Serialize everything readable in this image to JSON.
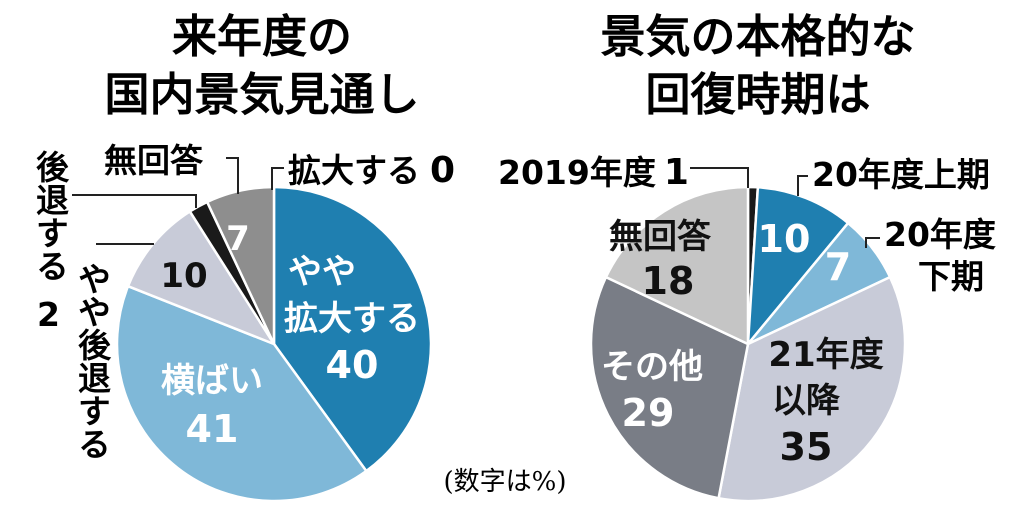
{
  "note": "(数字は%)",
  "chart_data": [
    {
      "type": "pie",
      "title_lines": [
        "来年度の",
        "国内景気見通し"
      ],
      "slices": [
        {
          "label": "拡大する",
          "value": 0,
          "color": "#1f7fb0"
        },
        {
          "label": "やや拡大する",
          "value": 40,
          "color": "#1f7fb0"
        },
        {
          "label": "横ばい",
          "value": 41,
          "color": "#7fb8d8"
        },
        {
          "label": "やや後退する",
          "value": 10,
          "color": "#c8cbd8"
        },
        {
          "label": "後退する",
          "value": 2,
          "color": "#1a1a1a"
        },
        {
          "label": "無回答",
          "value": 7,
          "color": "#8e8e8e"
        }
      ],
      "labels": {
        "kakudai": "拡大する",
        "kakudai_val": "0",
        "yaya_kakudai_1": "やや",
        "yaya_kakudai_2": "拡大する",
        "yaya_kakudai_val": "40",
        "yokobai": "横ばい",
        "yokobai_val": "41",
        "yaya_koutai": "やや後退する",
        "yaya_koutai_val": "10",
        "koutai": "後退する",
        "koutai_val": "2",
        "mukaitou": "無回答",
        "mukaitou_val": "7"
      }
    },
    {
      "type": "pie",
      "title_lines": [
        "景気の本格的な",
        "回復時期は"
      ],
      "slices": [
        {
          "label": "2019年度",
          "value": 1,
          "color": "#1a1a1a"
        },
        {
          "label": "20年度上期",
          "value": 10,
          "color": "#1f7fb0"
        },
        {
          "label": "20年度下期",
          "value": 7,
          "color": "#7fb8d8"
        },
        {
          "label": "21年度以降",
          "value": 35,
          "color": "#c8cbd8"
        },
        {
          "label": "その他",
          "value": 29,
          "color": "#797d86"
        },
        {
          "label": "無回答",
          "value": 18,
          "color": "#c5c5c5"
        }
      ],
      "labels": {
        "y2019": "2019年度",
        "y2019_val": "1",
        "kamiki": "20年度上期",
        "kamiki_val": "10",
        "shimoki_1": "20年度",
        "shimoki_2": "下期",
        "shimoki_val": "7",
        "ikou_1": "21年度",
        "ikou_2": "以降",
        "ikou_val": "35",
        "sonota": "その他",
        "sonota_val": "29",
        "mukaitou": "無回答",
        "mukaitou_val": "18"
      }
    }
  ]
}
